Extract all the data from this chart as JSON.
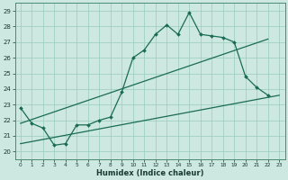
{
  "title": "",
  "xlabel": "Humidex (Indice chaleur)",
  "background_color": "#cce8e0",
  "grid_color": "#99ccbb",
  "line_color": "#1a6b55",
  "xlim": [
    -0.5,
    23.5
  ],
  "ylim": [
    19.5,
    29.5
  ],
  "xticks": [
    0,
    1,
    2,
    3,
    4,
    5,
    6,
    7,
    8,
    9,
    10,
    11,
    12,
    13,
    14,
    15,
    16,
    17,
    18,
    19,
    20,
    21,
    22,
    23
  ],
  "yticks": [
    20,
    21,
    22,
    23,
    24,
    25,
    26,
    27,
    28,
    29
  ],
  "curve1_x": [
    0,
    1,
    2,
    3,
    4,
    5,
    6,
    7,
    8,
    9,
    10,
    11,
    12,
    13,
    14,
    15,
    16,
    17,
    18,
    19,
    20,
    21,
    22
  ],
  "curve1_y": [
    22.8,
    21.8,
    21.5,
    20.4,
    20.5,
    21.7,
    21.7,
    22.0,
    22.2,
    23.8,
    26.0,
    26.5,
    27.5,
    28.1,
    27.5,
    28.9,
    27.5,
    27.4,
    27.3,
    27.0,
    24.8,
    24.1,
    23.6
  ],
  "line1_x": [
    0,
    22
  ],
  "line1_y": [
    21.8,
    27.2
  ],
  "line2_x": [
    0,
    23
  ],
  "line2_y": [
    20.5,
    23.6
  ]
}
